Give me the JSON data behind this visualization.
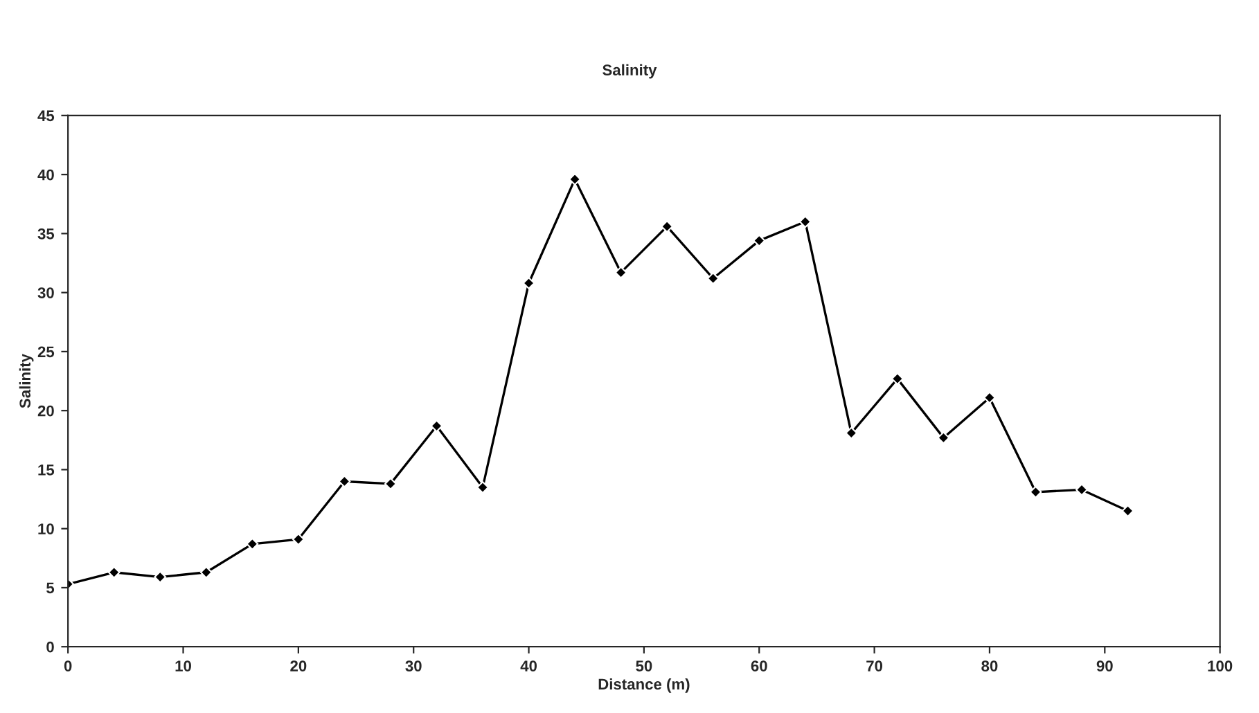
{
  "chart_data": {
    "type": "line",
    "title": "Salinity",
    "xlabel": "Distance (m)",
    "ylabel": "Salinity",
    "x": [
      0,
      4,
      8,
      12,
      16,
      20,
      24,
      28,
      32,
      36,
      40,
      44,
      48,
      52,
      56,
      60,
      64,
      68,
      72,
      76,
      80,
      84,
      88,
      92
    ],
    "series": [
      {
        "color": "#000000",
        "values": [
          5.3,
          6.3,
          5.9,
          6.3,
          8.7,
          9.1,
          14.0,
          13.8,
          18.7,
          13.5,
          30.8,
          39.6,
          31.7,
          35.6,
          31.2,
          34.4,
          36.0,
          18.1,
          22.7,
          17.7,
          21.1,
          13.1,
          13.3,
          11.5
        ]
      }
    ],
    "xlim": [
      0,
      100
    ],
    "xticks": [
      0,
      10,
      20,
      30,
      40,
      50,
      60,
      70,
      80,
      90,
      100
    ],
    "ylim": [
      0,
      45
    ],
    "yticks": [
      0,
      5,
      10,
      15,
      20,
      25,
      30,
      35,
      40,
      45
    ],
    "grid": false,
    "legend": false,
    "marker": "diamond",
    "line_style": "solid"
  }
}
